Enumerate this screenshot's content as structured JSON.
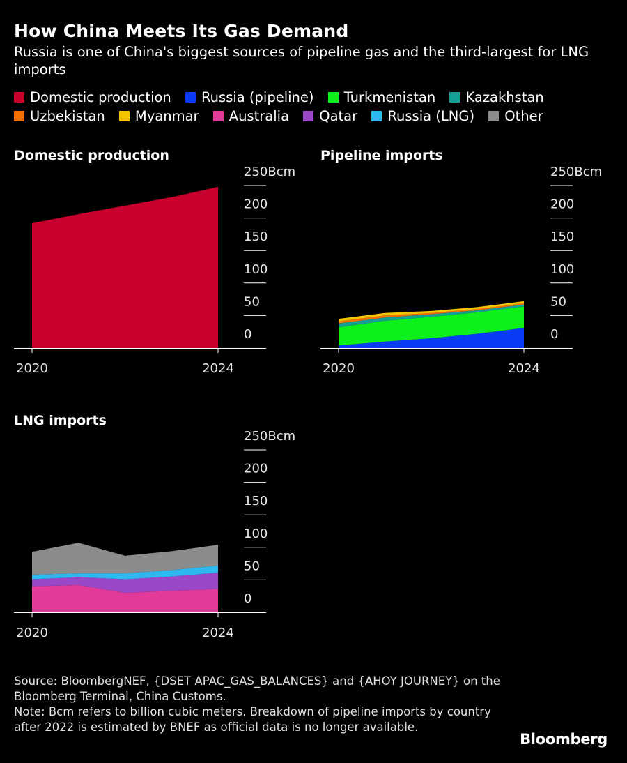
{
  "title": "How China Meets Its Gas Demand",
  "subtitle": "Russia is one of China's biggest sources of pipeline gas and the third-largest for LNG imports",
  "legend": [
    {
      "label": "Domestic production",
      "color": "#c8002d"
    },
    {
      "label": "Russia (pipeline)",
      "color": "#0a3cf5"
    },
    {
      "label": "Turkmenistan",
      "color": "#0ef01b"
    },
    {
      "label": "Kazakhstan",
      "color": "#159e96"
    },
    {
      "label": "Uzbekistan",
      "color": "#f57000"
    },
    {
      "label": "Myanmar",
      "color": "#f5c400"
    },
    {
      "label": "Australia",
      "color": "#e43a9a"
    },
    {
      "label": "Qatar",
      "color": "#9a48c8"
    },
    {
      "label": "Russia (LNG)",
      "color": "#2db9f0"
    },
    {
      "label": "Other",
      "color": "#8c8c8c"
    }
  ],
  "chart_data": [
    {
      "type": "area",
      "title": "Domestic production",
      "x": [
        2020,
        2021,
        2022,
        2023,
        2024
      ],
      "x_tick_labels": [
        "2020",
        "2024"
      ],
      "y_ticks": [
        "0",
        "50",
        "100",
        "150",
        "200",
        "250Bcm"
      ],
      "ylim": [
        0,
        250
      ],
      "series": [
        {
          "name": "Domestic production",
          "color": "#c8002d",
          "values": [
            192,
            206,
            219,
            232,
            248
          ]
        }
      ]
    },
    {
      "type": "area",
      "title": "Pipeline imports",
      "x": [
        2020,
        2021,
        2022,
        2023,
        2024
      ],
      "x_tick_labels": [
        "2020",
        "2024"
      ],
      "y_ticks": [
        "0",
        "50",
        "100",
        "150",
        "200",
        "250Bcm"
      ],
      "ylim": [
        0,
        250
      ],
      "stacked": true,
      "series": [
        {
          "name": "Russia (pipeline)",
          "color": "#0a3cf5",
          "values": [
            4,
            10,
            15,
            22,
            31
          ]
        },
        {
          "name": "Turkmenistan",
          "color": "#0ef01b",
          "values": [
            28,
            32,
            33,
            33,
            33
          ]
        },
        {
          "name": "Kazakhstan",
          "color": "#159e96",
          "values": [
            6,
            5,
            4,
            3,
            3
          ]
        },
        {
          "name": "Uzbekistan",
          "color": "#f57000",
          "values": [
            3,
            3,
            2,
            2,
            2
          ]
        },
        {
          "name": "Myanmar",
          "color": "#f5c400",
          "values": [
            4,
            4,
            3,
            3,
            3
          ]
        }
      ]
    },
    {
      "type": "area",
      "title": "LNG imports",
      "x": [
        2020,
        2021,
        2022,
        2023,
        2024
      ],
      "x_tick_labels": [
        "2020",
        "2024"
      ],
      "y_ticks": [
        "0",
        "50",
        "100",
        "150",
        "200",
        "250Bcm"
      ],
      "ylim": [
        0,
        250
      ],
      "stacked": true,
      "series": [
        {
          "name": "Australia",
          "color": "#e43a9a",
          "values": [
            40,
            42,
            30,
            33,
            36
          ]
        },
        {
          "name": "Qatar",
          "color": "#9a48c8",
          "values": [
            11,
            12,
            21,
            22,
            25
          ]
        },
        {
          "name": "Russia (LNG)",
          "color": "#2db9f0",
          "values": [
            7,
            6,
            9,
            10,
            11
          ]
        },
        {
          "name": "Other",
          "color": "#8c8c8c",
          "values": [
            35,
            47,
            27,
            29,
            32
          ]
        }
      ]
    }
  ],
  "footer": {
    "source": "Source: BloombergNEF, {DSET APAC_GAS_BALANCES} and {AHOY JOURNEY} on the Bloomberg Terminal, China Customs.",
    "note": "Note: Bcm refers to billion cubic meters. Breakdown of pipeline imports by country after 2022 is estimated by BNEF as official data is no longer available."
  },
  "brand": "Bloomberg"
}
